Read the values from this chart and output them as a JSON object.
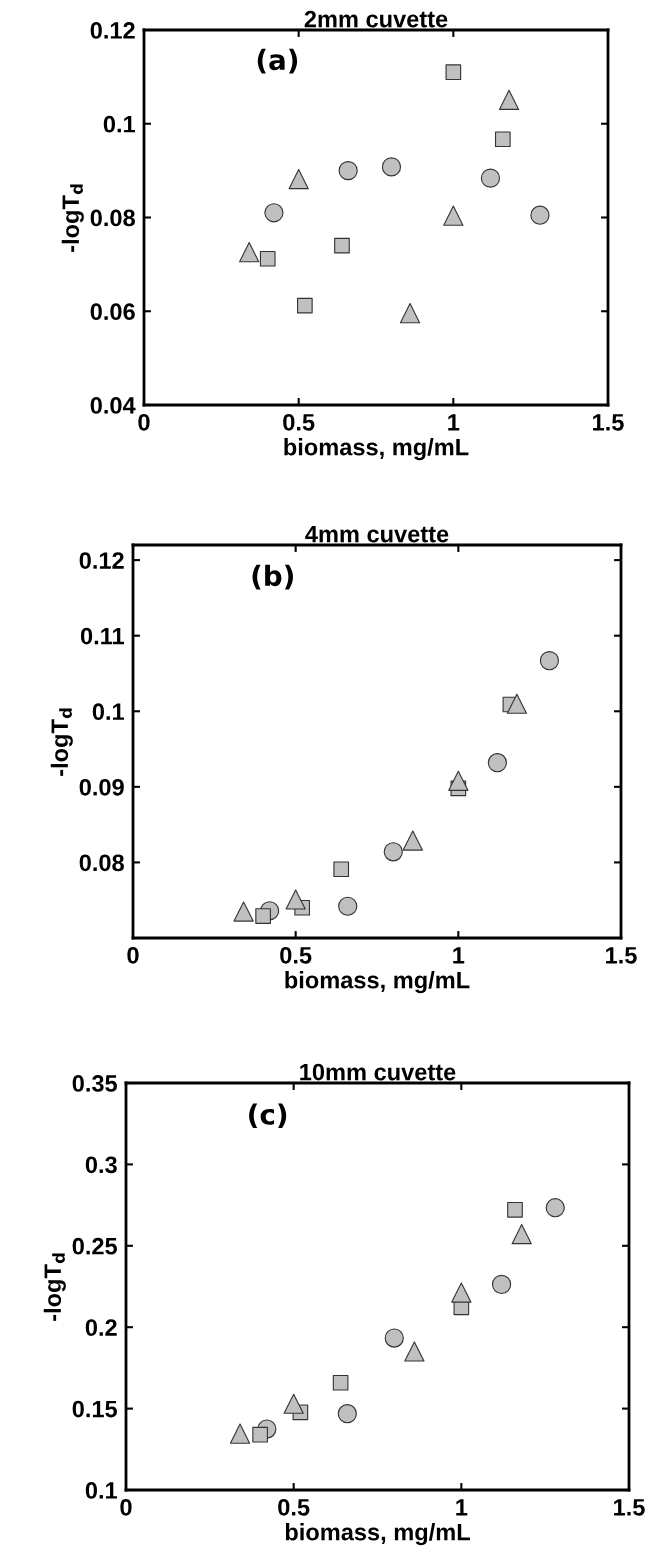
{
  "chart_data": [
    {
      "type": "scatter",
      "title": "2mm cuvette",
      "xlabel": "biomass, mg/mL",
      "ylabel": "-logT$_{d}$",
      "annotations": [
        "(a)"
      ],
      "xlim": [
        0,
        1.5
      ],
      "xticks": [
        0,
        0.5,
        1,
        1.5
      ],
      "ylim": [
        0.04,
        0.12
      ],
      "yticks": [
        0.04,
        0.06,
        0.08,
        0.1,
        0.12
      ],
      "grid": false,
      "series": [
        {
          "color": "#c0c0c0",
          "marker": "circle",
          "x": [
            0.42,
            0.66,
            0.8,
            1.12,
            1.28
          ],
          "values": [
            0.081,
            0.09,
            0.0908,
            0.0884,
            0.0805
          ]
        },
        {
          "color": "#c0c0c0",
          "marker": "square",
          "x": [
            0.4,
            0.52,
            0.64,
            1.0,
            1.16
          ],
          "values": [
            0.0712,
            0.0612,
            0.074,
            0.111,
            0.0967
          ]
        },
        {
          "color": "#c0c0c0",
          "marker": "triangle",
          "x": [
            0.34,
            0.5,
            0.86,
            1.0,
            1.18
          ],
          "values": [
            0.0726,
            0.0882,
            0.0596,
            0.0804,
            0.1051
          ]
        }
      ]
    },
    {
      "type": "scatter",
      "title": "4mm cuvette",
      "xlabel": "biomass, mg/mL",
      "ylabel": "-logT$_{d}$",
      "annotations": [
        "(b)"
      ],
      "xlim": [
        0,
        1.5
      ],
      "xticks": [
        0,
        0.5,
        1,
        1.5
      ],
      "ylim": [
        0.07,
        0.122
      ],
      "yticks": [
        0.08,
        0.09,
        0.1,
        0.11,
        0.12
      ],
      "grid": false,
      "series": [
        {
          "color": "#c0c0c0",
          "marker": "circle",
          "x": [
            0.42,
            0.66,
            0.8,
            1.12,
            1.28
          ],
          "values": [
            0.0736,
            0.0742,
            0.0814,
            0.0932,
            0.1067
          ]
        },
        {
          "color": "#c0c0c0",
          "marker": "square",
          "x": [
            0.4,
            0.52,
            0.64,
            1.0,
            1.16
          ],
          "values": [
            0.0729,
            0.074,
            0.0791,
            0.0898,
            0.1009
          ]
        },
        {
          "color": "#c0c0c0",
          "marker": "triangle",
          "x": [
            0.34,
            0.5,
            0.86,
            1.0,
            1.18
          ],
          "values": [
            0.0735,
            0.0751,
            0.0829,
            0.0908,
            0.101
          ]
        }
      ]
    },
    {
      "type": "scatter",
      "title": "10mm cuvette",
      "xlabel": "biomass, mg/mL",
      "ylabel": "-logT$_{d}$",
      "annotations": [
        "(c)"
      ],
      "xlim": [
        0,
        1.5
      ],
      "xticks": [
        0,
        0.5,
        1,
        1.5
      ],
      "ylim": [
        0.1,
        0.35
      ],
      "yticks": [
        0.1,
        0.15,
        0.2,
        0.25,
        0.3,
        0.35
      ],
      "grid": false,
      "series": [
        {
          "color": "#c0c0c0",
          "marker": "circle",
          "x": [
            0.42,
            0.66,
            0.8,
            1.12,
            1.28
          ],
          "values": [
            0.1374,
            0.1469,
            0.1933,
            0.2263,
            0.2734
          ]
        },
        {
          "color": "#c0c0c0",
          "marker": "square",
          "x": [
            0.4,
            0.52,
            0.64,
            1.0,
            1.16
          ],
          "values": [
            0.134,
            0.1477,
            0.1659,
            0.2122,
            0.2721
          ]
        },
        {
          "color": "#c0c0c0",
          "marker": "triangle",
          "x": [
            0.34,
            0.5,
            0.86,
            1.0,
            1.18
          ],
          "values": [
            0.1346,
            0.153,
            0.1851,
            0.2213,
            0.2572
          ]
        }
      ]
    }
  ]
}
